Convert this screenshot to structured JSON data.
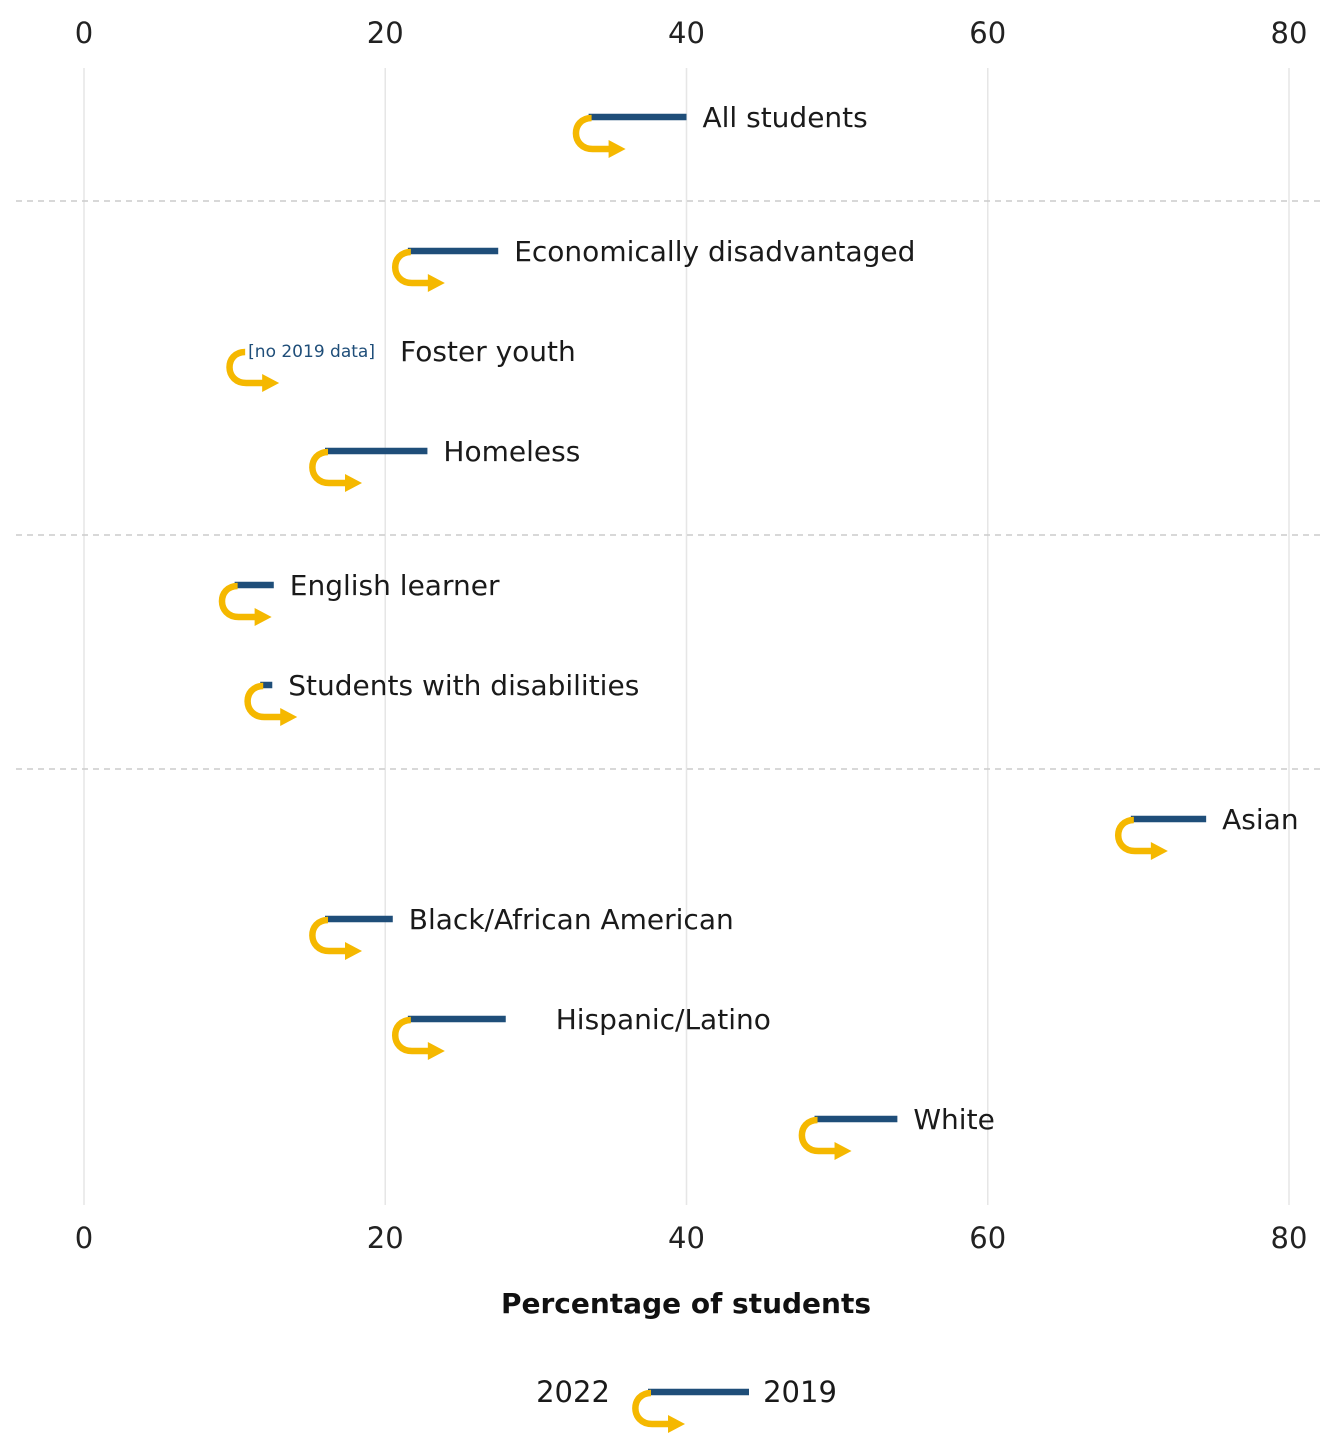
{
  "chart_data": {
    "type": "dumbbell-arrow",
    "xlabel": "Percentage of students",
    "xlim": [
      0,
      80
    ],
    "xticks": [
      0,
      20,
      40,
      60,
      80
    ],
    "grid": true,
    "legend_position": "bottom-center",
    "legend": {
      "from_label": "2019",
      "to_label": "2022"
    },
    "colors": {
      "2019_bar": "#1f4e79",
      "2022_arrow": "#f5b800",
      "note": "#1f4e79",
      "grid": "#e6e6e6",
      "separator": "#cccccc"
    },
    "groups": [
      [
        "All students"
      ],
      [
        "Economically disadvantaged",
        "Foster youth",
        "Homeless"
      ],
      [
        "English learner",
        "Students with disabilities"
      ],
      [
        "Asian",
        "Black/African American",
        "Hispanic/Latino",
        "White"
      ]
    ],
    "series": [
      {
        "name": "2019",
        "values": [
          40,
          27.5,
          null,
          22.8,
          12.6,
          12.5,
          74.5,
          20.5,
          28,
          54
        ]
      },
      {
        "name": "2022",
        "values": [
          33.5,
          21.5,
          10.5,
          16,
          10,
          11.7,
          69.5,
          16,
          21.5,
          48.5
        ]
      }
    ],
    "categories": [
      "All students",
      "Economically disadvantaged",
      "Foster youth",
      "Homeless",
      "English learner",
      "Students with disabilities",
      "Asian",
      "Black/African American",
      "Hispanic/Latino",
      "White"
    ],
    "annotations": [
      {
        "category": "Foster youth",
        "text": "[no 2019 data]"
      }
    ]
  }
}
